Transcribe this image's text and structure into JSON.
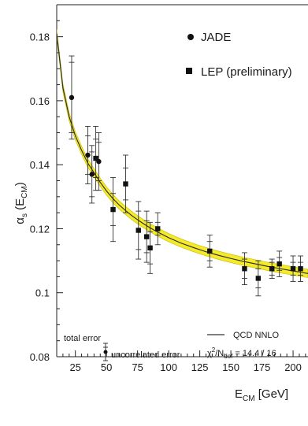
{
  "chart_data": {
    "type": "scatter",
    "title": "",
    "xlabel": {
      "main": "E",
      "sub": "CM",
      "unit": " [GeV]"
    },
    "ylabel": {
      "main": "α",
      "sub1": "s",
      "paren_open": " (E",
      "sub2": "CM",
      "paren_close": ")"
    },
    "xlim": [
      10,
      212
    ],
    "ylim": [
      0.08,
      0.19
    ],
    "x_ticks": [
      25,
      50,
      75,
      100,
      125,
      150,
      175,
      200
    ],
    "x_tick_labels": [
      "25",
      "50",
      "75",
      "100",
      "125",
      "150",
      "175",
      "200"
    ],
    "y_ticks": [
      0.08,
      0.1,
      0.12,
      0.14,
      0.16,
      0.18
    ],
    "y_tick_labels": [
      "0.08",
      "0.1",
      "0.12",
      "0.14",
      "0.16",
      "0.18"
    ],
    "grid": false,
    "legend_position": "top-right",
    "series": [
      {
        "name": "JADE",
        "marker": "circle",
        "color": "#111111",
        "points": [
          {
            "x": 22,
            "y": 0.161,
            "err_total": 0.013,
            "err_uncorr": 0.011
          },
          {
            "x": 35,
            "y": 0.143,
            "err_total": 0.009,
            "err_uncorr": 0.006
          },
          {
            "x": 38.3,
            "y": 0.137,
            "err_total": 0.009,
            "err_uncorr": 0.007
          },
          {
            "x": 43.8,
            "y": 0.141,
            "err_total": 0.009,
            "err_uncorr": 0.006
          }
        ]
      },
      {
        "name": "LEP (preliminary)",
        "marker": "square",
        "color": "#111111",
        "points": [
          {
            "x": 41.4,
            "y": 0.142,
            "err_total": 0.01,
            "err_uncorr": 0.006
          },
          {
            "x": 55.3,
            "y": 0.126,
            "err_total": 0.01,
            "err_uncorr": 0.005
          },
          {
            "x": 65.4,
            "y": 0.134,
            "err_total": 0.009,
            "err_uncorr": 0.005
          },
          {
            "x": 75.7,
            "y": 0.1195,
            "err_total": 0.009,
            "err_uncorr": 0.006
          },
          {
            "x": 82.3,
            "y": 0.1175,
            "err_total": 0.008,
            "err_uncorr": 0.005
          },
          {
            "x": 85.1,
            "y": 0.114,
            "err_total": 0.008,
            "err_uncorr": 0.005
          },
          {
            "x": 91.2,
            "y": 0.12,
            "err_total": 0.005,
            "err_uncorr": 0.002
          },
          {
            "x": 133,
            "y": 0.113,
            "err_total": 0.005,
            "err_uncorr": 0.003
          },
          {
            "x": 161,
            "y": 0.1075,
            "err_total": 0.005,
            "err_uncorr": 0.003
          },
          {
            "x": 172,
            "y": 0.1045,
            "err_total": 0.0055,
            "err_uncorr": 0.003
          },
          {
            "x": 183,
            "y": 0.1075,
            "err_total": 0.003,
            "err_uncorr": 0.002
          },
          {
            "x": 189,
            "y": 0.109,
            "err_total": 0.004,
            "err_uncorr": 0.002
          },
          {
            "x": 200,
            "y": 0.1075,
            "err_total": 0.004,
            "err_uncorr": 0.002
          },
          {
            "x": 206,
            "y": 0.1075,
            "err_total": 0.004,
            "err_uncorr": 0.002
          }
        ]
      }
    ],
    "fit_curve": {
      "name": "QCD NNLO",
      "color": "#2a2a2a",
      "band_color": "#f2ea2a",
      "band_width": 0.0013,
      "points": [
        {
          "x": 10,
          "y": 0.181
        },
        {
          "x": 15,
          "y": 0.164
        },
        {
          "x": 20,
          "y": 0.155
        },
        {
          "x": 25,
          "y": 0.149
        },
        {
          "x": 30,
          "y": 0.1445
        },
        {
          "x": 35,
          "y": 0.1405
        },
        {
          "x": 40,
          "y": 0.1375
        },
        {
          "x": 45,
          "y": 0.1345
        },
        {
          "x": 50,
          "y": 0.1318
        },
        {
          "x": 55,
          "y": 0.1295
        },
        {
          "x": 60,
          "y": 0.1275
        },
        {
          "x": 65,
          "y": 0.1258
        },
        {
          "x": 70,
          "y": 0.1242
        },
        {
          "x": 75,
          "y": 0.1228
        },
        {
          "x": 80,
          "y": 0.1215
        },
        {
          "x": 85,
          "y": 0.1203
        },
        {
          "x": 90,
          "y": 0.1192
        },
        {
          "x": 100,
          "y": 0.1172
        },
        {
          "x": 110,
          "y": 0.1155
        },
        {
          "x": 120,
          "y": 0.1141
        },
        {
          "x": 130,
          "y": 0.1128
        },
        {
          "x": 140,
          "y": 0.1117
        },
        {
          "x": 150,
          "y": 0.1107
        },
        {
          "x": 160,
          "y": 0.1098
        },
        {
          "x": 170,
          "y": 0.109
        },
        {
          "x": 180,
          "y": 0.1082
        },
        {
          "x": 190,
          "y": 0.1075
        },
        {
          "x": 200,
          "y": 0.1068
        },
        {
          "x": 212,
          "y": 0.106
        }
      ]
    },
    "annotations": {
      "error_legend": {
        "total_label": "total error",
        "uncorr_label": "uncorrelated error"
      },
      "fit_label": "QCD NNLO",
      "chi2": {
        "chi": "χ",
        "sup": "2",
        "slash": "/N",
        "sub": "dof",
        "value": " = 14.4 / 16"
      }
    }
  }
}
